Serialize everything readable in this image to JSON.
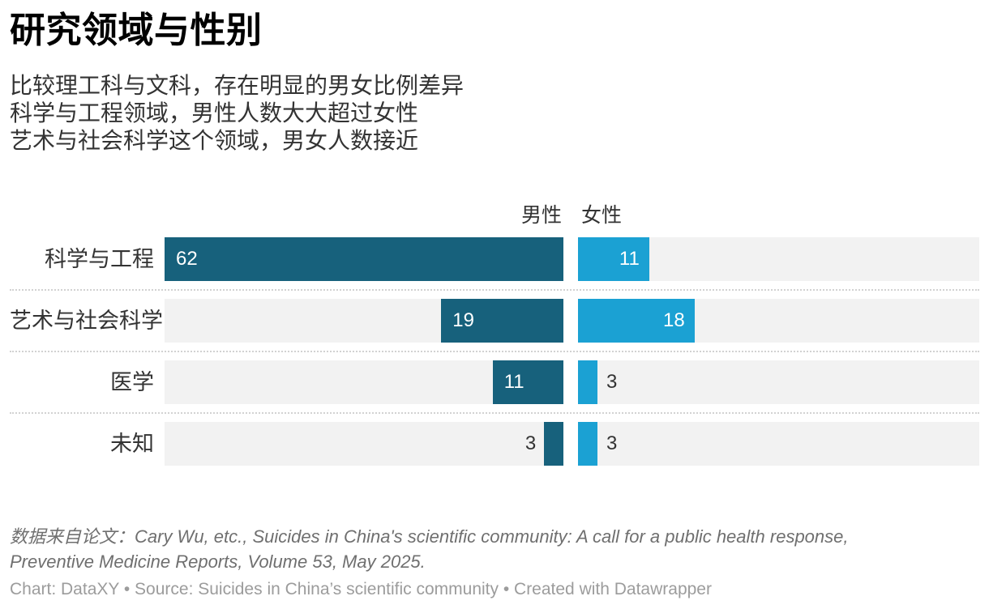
{
  "header": {
    "title": "研究领域与性别",
    "description_lines": [
      "比较理工科与文科，存在明显的男女比例差异",
      "科学与工程领域，男性人数大大超过女性",
      "艺术与社会科学这个领域，男女人数接近"
    ]
  },
  "chart_data": {
    "type": "bar",
    "variant": "split-bars",
    "orientation": "horizontal",
    "legend_position": "top",
    "categories": [
      "科学与工程",
      "艺术与社会科学",
      "医学",
      "未知"
    ],
    "series": [
      {
        "name": "男性",
        "color": "#17617c",
        "values": [
          62,
          19,
          11,
          3
        ]
      },
      {
        "name": "女性",
        "color": "#1ba1d3",
        "values": [
          11,
          18,
          3,
          3
        ]
      }
    ],
    "xlim": [
      0,
      62
    ],
    "track_color": "#f2f2f2",
    "value_labels_shown": true,
    "grid": "dotted-row-separators"
  },
  "footer": {
    "note_lines": [
      "数据来自论文：Cary Wu, etc., Suicides in China's scientific community: A call for a public health response,",
      "Preventive Medicine Reports, Volume 53, May 2025."
    ],
    "byline": "Chart: DataXY • Source: Suicides in China’s scientific community • Created with Datawrapper"
  }
}
